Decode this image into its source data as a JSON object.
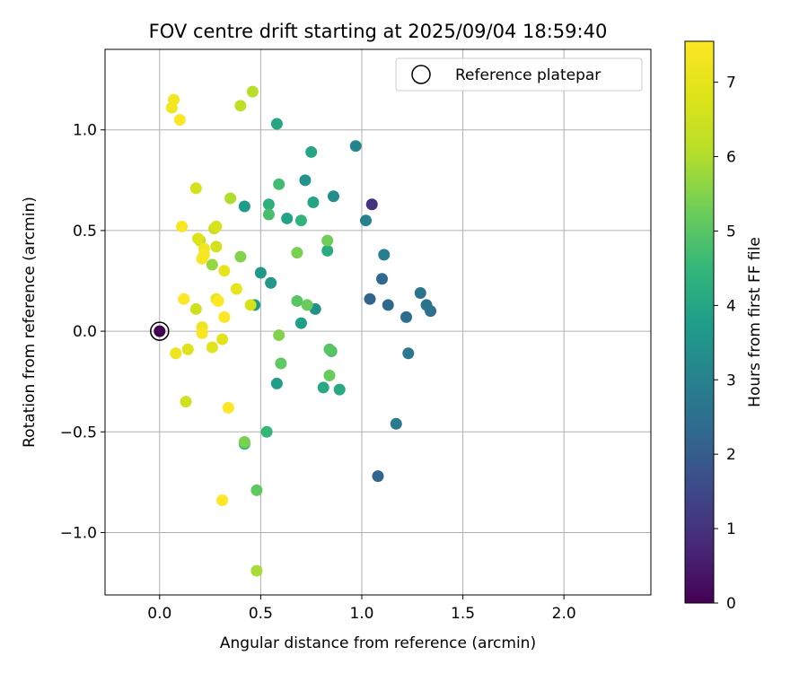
{
  "chart_data": {
    "type": "scatter",
    "title": "FOV centre drift starting at 2025/09/04 18:59:40",
    "xlabel": "Angular distance from reference (arcmin)",
    "ylabel": "Rotation from reference (arcmin)",
    "xlim": [
      -0.27,
      2.43
    ],
    "ylim": [
      -1.31,
      1.4
    ],
    "xticks": [
      0.0,
      0.5,
      1.0,
      1.5,
      2.0
    ],
    "xtick_labels": [
      "0.0",
      "0.5",
      "1.0",
      "1.5",
      "2.0"
    ],
    "yticks": [
      -1.0,
      -0.5,
      0.0,
      0.5,
      1.0
    ],
    "ytick_labels": [
      "−1.0",
      "−0.5",
      "0.0",
      "0.5",
      "1.0"
    ],
    "grid": true,
    "legend": {
      "position": "top-right",
      "entries": [
        "Reference platepar"
      ]
    },
    "colorbar": {
      "label": "Hours from first FF file",
      "min": 0,
      "max": 7.55,
      "ticks": [
        0,
        1,
        2,
        3,
        4,
        5,
        6,
        7
      ],
      "tick_labels": [
        "0",
        "1",
        "2",
        "3",
        "4",
        "5",
        "6",
        "7"
      ],
      "colormap": "viridis"
    },
    "reference_point": {
      "x": 0.0,
      "y": 0.0,
      "hours": 0.0
    },
    "points": [
      {
        "x": 1.05,
        "y": 0.63,
        "hours": 1.0
      },
      {
        "x": 1.08,
        "y": -0.72,
        "hours": 2.2
      },
      {
        "x": 1.04,
        "y": 0.16,
        "hours": 2.2
      },
      {
        "x": 1.1,
        "y": 0.26,
        "hours": 2.3
      },
      {
        "x": 1.13,
        "y": 0.13,
        "hours": 2.3
      },
      {
        "x": 1.22,
        "y": 0.07,
        "hours": 2.4
      },
      {
        "x": 1.34,
        "y": 0.1,
        "hours": 2.5
      },
      {
        "x": 1.32,
        "y": 0.13,
        "hours": 2.6
      },
      {
        "x": 1.29,
        "y": 0.19,
        "hours": 2.6
      },
      {
        "x": 1.23,
        "y": -0.11,
        "hours": 2.7
      },
      {
        "x": 1.17,
        "y": -0.46,
        "hours": 2.8
      },
      {
        "x": 1.11,
        "y": 0.38,
        "hours": 2.9
      },
      {
        "x": 1.02,
        "y": 0.55,
        "hours": 3.0
      },
      {
        "x": 0.97,
        "y": 0.92,
        "hours": 3.1
      },
      {
        "x": 0.86,
        "y": 0.67,
        "hours": 3.3
      },
      {
        "x": 0.77,
        "y": 0.11,
        "hours": 3.4
      },
      {
        "x": 0.72,
        "y": 0.75,
        "hours": 3.5
      },
      {
        "x": 0.5,
        "y": 0.29,
        "hours": 3.6
      },
      {
        "x": 0.55,
        "y": 0.24,
        "hours": 3.6
      },
      {
        "x": 0.42,
        "y": 0.62,
        "hours": 3.7
      },
      {
        "x": 0.47,
        "y": 0.13,
        "hours": 3.7
      },
      {
        "x": 0.58,
        "y": -0.26,
        "hours": 3.8
      },
      {
        "x": 0.7,
        "y": 0.04,
        "hours": 3.8
      },
      {
        "x": 0.63,
        "y": 0.56,
        "hours": 3.9
      },
      {
        "x": 0.75,
        "y": 0.89,
        "hours": 4.0
      },
      {
        "x": 0.58,
        "y": 1.03,
        "hours": 4.0
      },
      {
        "x": 0.76,
        "y": 0.64,
        "hours": 4.0
      },
      {
        "x": 0.81,
        "y": -0.28,
        "hours": 4.1
      },
      {
        "x": 0.89,
        "y": -0.29,
        "hours": 4.1
      },
      {
        "x": 0.83,
        "y": 0.4,
        "hours": 4.2
      },
      {
        "x": 0.54,
        "y": 0.63,
        "hours": 4.3
      },
      {
        "x": 0.7,
        "y": 0.55,
        "hours": 4.4
      },
      {
        "x": 0.53,
        "y": -0.5,
        "hours": 4.5
      },
      {
        "x": 0.42,
        "y": -0.56,
        "hours": 4.6
      },
      {
        "x": 0.59,
        "y": 0.73,
        "hours": 4.7
      },
      {
        "x": 0.54,
        "y": 0.58,
        "hours": 4.8
      },
      {
        "x": 0.85,
        "y": -0.1,
        "hours": 4.9
      },
      {
        "x": 0.84,
        "y": -0.09,
        "hours": 5.0
      },
      {
        "x": 0.68,
        "y": 0.15,
        "hours": 5.0
      },
      {
        "x": 0.48,
        "y": -0.79,
        "hours": 5.1
      },
      {
        "x": 0.6,
        "y": -0.16,
        "hours": 5.1
      },
      {
        "x": 0.73,
        "y": 0.13,
        "hours": 5.2
      },
      {
        "x": 0.84,
        "y": -0.22,
        "hours": 5.2
      },
      {
        "x": 0.83,
        "y": 0.45,
        "hours": 5.3
      },
      {
        "x": 0.68,
        "y": 0.39,
        "hours": 5.4
      },
      {
        "x": 0.42,
        "y": -0.55,
        "hours": 5.4
      },
      {
        "x": 0.59,
        "y": -0.02,
        "hours": 5.5
      },
      {
        "x": 0.4,
        "y": 0.37,
        "hours": 5.5
      },
      {
        "x": 0.26,
        "y": 0.33,
        "hours": 5.7
      },
      {
        "x": 0.48,
        "y": -1.19,
        "hours": 5.9
      },
      {
        "x": 0.35,
        "y": 0.66,
        "hours": 6.0
      },
      {
        "x": 0.46,
        "y": 1.19,
        "hours": 6.1
      },
      {
        "x": 0.4,
        "y": 1.12,
        "hours": 6.2
      },
      {
        "x": 0.2,
        "y": 0.45,
        "hours": 6.3
      },
      {
        "x": 0.27,
        "y": 0.51,
        "hours": 6.4
      },
      {
        "x": 0.13,
        "y": -0.35,
        "hours": 6.5
      },
      {
        "x": 0.18,
        "y": 0.11,
        "hours": 6.5
      },
      {
        "x": 0.28,
        "y": 0.42,
        "hours": 6.6
      },
      {
        "x": 0.18,
        "y": 0.71,
        "hours": 6.6
      },
      {
        "x": 0.45,
        "y": 0.13,
        "hours": 6.7
      },
      {
        "x": 0.28,
        "y": 0.52,
        "hours": 6.7
      },
      {
        "x": 0.19,
        "y": 0.46,
        "hours": 6.8
      },
      {
        "x": 0.14,
        "y": -0.09,
        "hours": 6.8
      },
      {
        "x": 0.26,
        "y": -0.08,
        "hours": 6.9
      },
      {
        "x": 0.31,
        "y": -0.04,
        "hours": 6.9
      },
      {
        "x": 0.38,
        "y": 0.21,
        "hours": 7.0
      },
      {
        "x": 0.32,
        "y": 0.3,
        "hours": 7.0
      },
      {
        "x": 0.28,
        "y": 0.16,
        "hours": 7.1
      },
      {
        "x": 0.21,
        "y": 0.02,
        "hours": 7.2
      },
      {
        "x": 0.08,
        "y": -0.11,
        "hours": 7.2
      },
      {
        "x": 0.07,
        "y": 1.15,
        "hours": 7.3
      },
      {
        "x": 0.06,
        "y": 1.11,
        "hours": 7.3
      },
      {
        "x": 0.22,
        "y": 0.41,
        "hours": 7.3
      },
      {
        "x": 0.22,
        "y": 0.38,
        "hours": 7.4
      },
      {
        "x": 0.21,
        "y": 0.36,
        "hours": 7.4
      },
      {
        "x": 0.11,
        "y": 0.52,
        "hours": 7.4
      },
      {
        "x": 0.21,
        "y": -0.01,
        "hours": 7.45
      },
      {
        "x": 0.1,
        "y": 1.05,
        "hours": 7.5
      },
      {
        "x": 0.12,
        "y": 0.16,
        "hours": 7.5
      },
      {
        "x": 0.29,
        "y": 0.15,
        "hours": 7.5
      },
      {
        "x": 0.32,
        "y": 0.07,
        "hours": 7.55
      },
      {
        "x": 0.34,
        "y": -0.38,
        "hours": 7.55
      },
      {
        "x": 0.31,
        "y": -0.84,
        "hours": 7.55
      }
    ]
  }
}
